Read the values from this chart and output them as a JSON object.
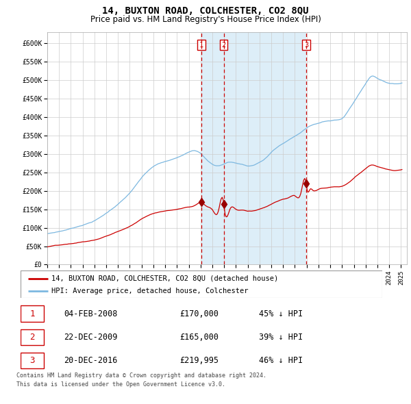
{
  "title": "14, BUXTON ROAD, COLCHESTER, CO2 8QU",
  "subtitle": "Price paid vs. HM Land Registry's House Price Index (HPI)",
  "title_fontsize": 10,
  "subtitle_fontsize": 8.5,
  "ylim": [
    0,
    625000
  ],
  "yticks": [
    0,
    50000,
    100000,
    150000,
    200000,
    250000,
    300000,
    350000,
    400000,
    450000,
    500000,
    550000,
    600000
  ],
  "ytick_labels": [
    "£0",
    "£50K",
    "£100K",
    "£150K",
    "£200K",
    "£250K",
    "£300K",
    "£350K",
    "£400K",
    "£450K",
    "£500K",
    "£550K",
    "£600K"
  ],
  "xlim_start": 1995.0,
  "xlim_end": 2025.5,
  "background_color": "#ffffff",
  "grid_color": "#cccccc",
  "hpi_color": "#7db8e0",
  "price_paid_color": "#cc0000",
  "sale_line_color": "#cc0000",
  "sale_marker_color": "#990000",
  "shade_color": "#ddeef8",
  "legend_label_red": "14, BUXTON ROAD, COLCHESTER, CO2 8QU (detached house)",
  "legend_label_blue": "HPI: Average price, detached house, Colchester",
  "footer_line1": "Contains HM Land Registry data © Crown copyright and database right 2024.",
  "footer_line2": "This data is licensed under the Open Government Licence v3.0.",
  "sales": [
    {
      "num": 1,
      "year": 2008.08,
      "price": 170000,
      "label": "04-FEB-2008",
      "price_str": "£170,000",
      "hpi_str": "45% ↓ HPI"
    },
    {
      "num": 2,
      "year": 2009.97,
      "price": 165000,
      "label": "22-DEC-2009",
      "price_str": "£165,000",
      "hpi_str": "39% ↓ HPI"
    },
    {
      "num": 3,
      "year": 2016.97,
      "price": 219995,
      "label": "20-DEC-2016",
      "price_str": "£219,995",
      "hpi_str": "46% ↓ HPI"
    }
  ]
}
